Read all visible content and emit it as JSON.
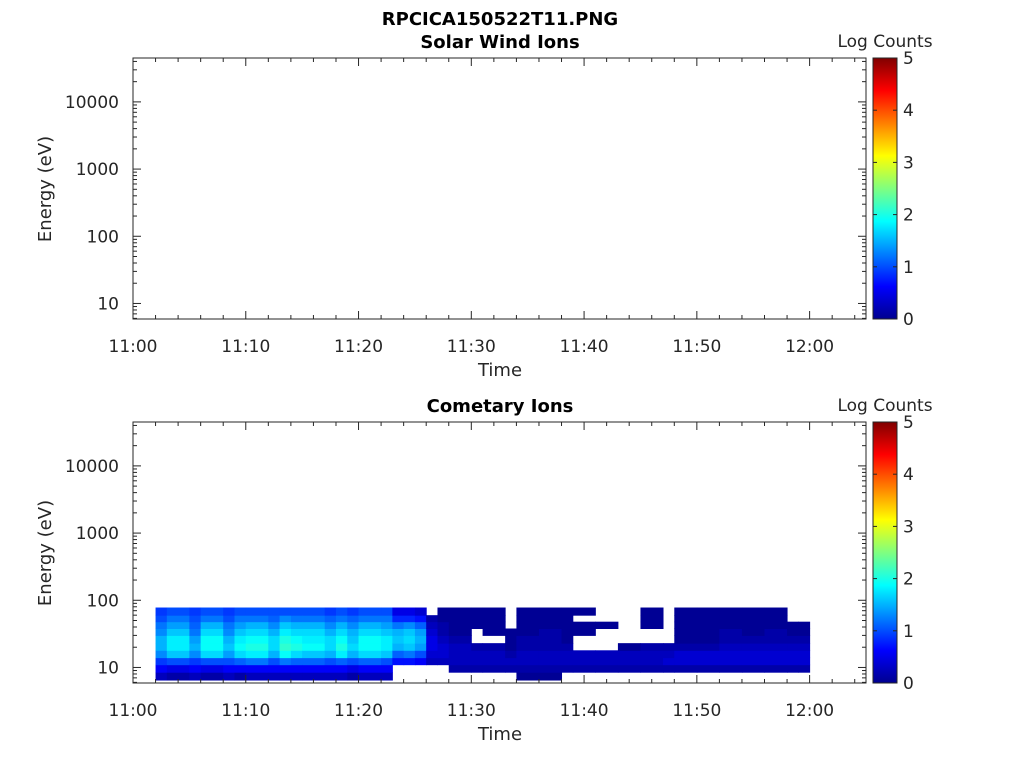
{
  "figure": {
    "title": "RPCICA150522T11.PNG"
  },
  "chart_data": [
    {
      "type": "heatmap",
      "title": "Solar Wind Ions",
      "xlabel": "Time",
      "ylabel": "Energy (eV)",
      "x_ticks": [
        "11:00",
        "11:10",
        "11:20",
        "11:30",
        "11:40",
        "11:50",
        "12:00"
      ],
      "y_ticks": [
        "10",
        "100",
        "1000",
        "10000"
      ],
      "y_scale": "log",
      "colorbar": {
        "label": "Log Counts",
        "ticks": [
          "0",
          "1",
          "2",
          "3",
          "4",
          "5"
        ],
        "range": [
          0,
          5
        ],
        "colormap": "jet"
      },
      "spectrogram": {
        "columns": []
      }
    },
    {
      "type": "heatmap",
      "title": "Cometary Ions",
      "xlabel": "Time",
      "ylabel": "Energy (eV)",
      "x_ticks": [
        "11:00",
        "11:10",
        "11:20",
        "11:30",
        "11:40",
        "11:50",
        "12:00"
      ],
      "y_ticks": [
        "10",
        "100",
        "1000",
        "10000"
      ],
      "y_scale": "log",
      "colorbar": {
        "label": "Log Counts",
        "ticks": [
          "0",
          "1",
          "2",
          "3",
          "4",
          "5"
        ],
        "range": [
          0,
          5
        ],
        "colormap": "jet"
      },
      "spectrogram": {
        "energy_bins": [
          6.5,
          8.5,
          11,
          14,
          18,
          23,
          30,
          38,
          48,
          60,
          78
        ],
        "columns": [
          {
            "t": [
              "11:02",
              "11:03"
            ],
            "levels": [
              0.3,
              0.6,
              0.9,
              1.3,
              1.5,
              1.5,
              1.3,
              1.2,
              1.0,
              0.9
            ]
          },
          {
            "t": [
              "11:03",
              "11:05"
            ],
            "levels": [
              0.2,
              0.5,
              1.0,
              1.6,
              1.8,
              1.8,
              1.6,
              1.4,
              1.2,
              1.0
            ]
          },
          {
            "t": [
              "11:05",
              "11:06"
            ],
            "levels": [
              0.3,
              0.6,
              0.9,
              1.3,
              1.5,
              1.4,
              1.2,
              1.1,
              1.0,
              0.9
            ]
          },
          {
            "t": [
              "11:06",
              "11:08"
            ],
            "levels": [
              0.2,
              0.5,
              1.0,
              1.7,
              1.9,
              1.9,
              1.7,
              1.5,
              1.2,
              1.0
            ]
          },
          {
            "t": [
              "11:08",
              "11:09"
            ],
            "levels": [
              0.3,
              0.6,
              1.0,
              1.4,
              1.6,
              1.5,
              1.3,
              1.2,
              1.0,
              0.9
            ]
          },
          {
            "t": [
              "11:09",
              "11:10"
            ],
            "levels": [
              0.2,
              0.6,
              1.1,
              1.7,
              1.9,
              1.8,
              1.6,
              1.4,
              1.2,
              1.0
            ]
          },
          {
            "t": [
              "11:10",
              "11:12"
            ],
            "levels": [
              0.3,
              0.6,
              1.2,
              1.8,
              2.0,
              1.9,
              1.7,
              1.5,
              1.2,
              1.0
            ]
          },
          {
            "t": [
              "11:12",
              "11:13"
            ],
            "levels": [
              0.3,
              0.6,
              1.0,
              1.5,
              1.7,
              1.7,
              1.5,
              1.3,
              1.1,
              1.0
            ]
          },
          {
            "t": [
              "11:13",
              "11:14"
            ],
            "levels": [
              0.3,
              0.6,
              1.2,
              1.9,
              2.1,
              2.0,
              1.8,
              1.6,
              1.3,
              1.0
            ]
          },
          {
            "t": [
              "11:14",
              "11:15"
            ],
            "levels": [
              0.3,
              0.6,
              1.1,
              1.7,
              2.0,
              1.9,
              1.7,
              1.5,
              1.2,
              1.0
            ]
          },
          {
            "t": [
              "11:15",
              "11:17"
            ],
            "levels": [
              0.3,
              0.6,
              1.1,
              1.6,
              1.9,
              1.8,
              1.7,
              1.5,
              1.2,
              1.0
            ]
          },
          {
            "t": [
              "11:17",
              "11:18"
            ],
            "levels": [
              0.3,
              0.6,
              1.0,
              1.5,
              1.7,
              1.7,
              1.5,
              1.3,
              1.1,
              0.9
            ]
          },
          {
            "t": [
              "11:18",
              "11:19"
            ],
            "levels": [
              0.3,
              0.6,
              1.1,
              1.8,
              2.0,
              1.9,
              1.7,
              1.5,
              1.2,
              1.0
            ]
          },
          {
            "t": [
              "11:19",
              "11:20"
            ],
            "levels": [
              0.2,
              0.5,
              1.0,
              1.5,
              1.7,
              1.6,
              1.5,
              1.3,
              1.1,
              0.9
            ]
          },
          {
            "t": [
              "11:20",
              "11:22"
            ],
            "levels": [
              0.3,
              0.6,
              1.1,
              1.7,
              1.9,
              1.9,
              1.7,
              1.5,
              1.2,
              1.0
            ]
          },
          {
            "t": [
              "11:22",
              "11:23"
            ],
            "levels": [
              0.3,
              0.6,
              1.0,
              1.6,
              1.8,
              1.8,
              1.6,
              1.4,
              1.2,
              1.0
            ]
          },
          {
            "t": [
              "11:23",
              "11:24"
            ],
            "levels": [
              null,
              null,
              0.7,
              1.1,
              1.5,
              1.6,
              1.5,
              1.2,
              0.8,
              0.5
            ]
          },
          {
            "t": [
              "11:24",
              "11:25"
            ],
            "levels": [
              null,
              null,
              0.7,
              1.2,
              1.6,
              1.7,
              1.6,
              1.3,
              0.8,
              0.5
            ]
          },
          {
            "t": [
              "11:25",
              "11:26"
            ],
            "levels": [
              null,
              null,
              0.6,
              1.0,
              1.4,
              1.5,
              1.4,
              1.1,
              0.7,
              0.4
            ]
          },
          {
            "t": [
              "11:26",
              "11:27"
            ],
            "levels": [
              null,
              null,
              0.3,
              0.4,
              0.5,
              0.5,
              0.4,
              0.3,
              0.2,
              null
            ]
          },
          {
            "t": [
              "11:27",
              "11:28"
            ],
            "levels": [
              null,
              null,
              0.3,
              0.4,
              0.4,
              0.3,
              0.2,
              0.2,
              0.1,
              0.1
            ]
          },
          {
            "t": [
              "11:28",
              "11:30"
            ],
            "levels": [
              null,
              0.2,
              0.3,
              0.3,
              0.3,
              0.2,
              0.1,
              0.1,
              0.1,
              0.1
            ]
          },
          {
            "t": [
              "11:30",
              "11:31"
            ],
            "levels": [
              null,
              0.2,
              0.3,
              0.3,
              0.2,
              null,
              null,
              0.1,
              0.1,
              0.1
            ]
          },
          {
            "t": [
              "11:31",
              "11:33"
            ],
            "levels": [
              null,
              0.2,
              0.3,
              0.3,
              0.2,
              null,
              0.1,
              0.1,
              0.1,
              0.1
            ]
          },
          {
            "t": [
              "11:33",
              "11:34"
            ],
            "levels": [
              null,
              0.2,
              0.3,
              0.2,
              0.1,
              0.1,
              0.1,
              null,
              null,
              null
            ]
          },
          {
            "t": [
              "11:34",
              "11:36"
            ],
            "levels": [
              0.1,
              0.2,
              0.3,
              0.3,
              0.2,
              0.2,
              0.1,
              0.1,
              0.1,
              0.1
            ]
          },
          {
            "t": [
              "11:36",
              "11:38"
            ],
            "levels": [
              0.1,
              0.2,
              0.3,
              0.3,
              0.2,
              0.2,
              0.2,
              0.1,
              0.1,
              0.1
            ]
          },
          {
            "t": [
              "11:38",
              "11:39"
            ],
            "levels": [
              null,
              0.2,
              0.3,
              0.3,
              0.2,
              0.1,
              0.1,
              0.1,
              0.1,
              0.1
            ]
          },
          {
            "t": [
              "11:39",
              "11:41"
            ],
            "levels": [
              null,
              0.2,
              0.3,
              0.3,
              null,
              null,
              0.1,
              0.1,
              null,
              0.1
            ]
          },
          {
            "t": [
              "11:41",
              "11:43"
            ],
            "levels": [
              null,
              0.2,
              0.3,
              0.3,
              null,
              null,
              null,
              0.1,
              null,
              null
            ]
          },
          {
            "t": [
              "11:43",
              "11:45"
            ],
            "levels": [
              null,
              0.2,
              0.3,
              0.3,
              0.1,
              null,
              null,
              null,
              null,
              null
            ]
          },
          {
            "t": [
              "11:45",
              "11:47"
            ],
            "levels": [
              null,
              0.2,
              0.3,
              0.3,
              0.2,
              null,
              null,
              0.1,
              0.1,
              0.1
            ]
          },
          {
            "t": [
              "11:47",
              "11:48"
            ],
            "levels": [
              null,
              0.2,
              0.4,
              0.3,
              0.2,
              null,
              null,
              null,
              null,
              null
            ]
          },
          {
            "t": [
              "11:48",
              "11:50"
            ],
            "levels": [
              null,
              0.2,
              0.4,
              0.4,
              0.2,
              0.1,
              0.1,
              0.1,
              0.1,
              0.1
            ]
          },
          {
            "t": [
              "11:50",
              "11:52"
            ],
            "levels": [
              null,
              0.2,
              0.4,
              0.4,
              0.2,
              0.1,
              0.1,
              0.1,
              0.1,
              0.1
            ]
          },
          {
            "t": [
              "11:52",
              "11:54"
            ],
            "levels": [
              null,
              0.2,
              0.4,
              0.4,
              0.3,
              0.2,
              0.2,
              0.1,
              0.1,
              0.1
            ]
          },
          {
            "t": [
              "11:54",
              "11:56"
            ],
            "levels": [
              null,
              0.2,
              0.4,
              0.4,
              0.3,
              0.2,
              0.1,
              0.1,
              0.1,
              0.1
            ]
          },
          {
            "t": [
              "11:56",
              "11:58"
            ],
            "levels": [
              null,
              0.2,
              0.4,
              0.4,
              0.3,
              0.2,
              0.2,
              0.1,
              0.1,
              0.1
            ]
          },
          {
            "t": [
              "11:58",
              "11:59"
            ],
            "levels": [
              null,
              0.2,
              0.4,
              0.4,
              0.3,
              0.2,
              0.1,
              0.1,
              null,
              null
            ]
          },
          {
            "t": [
              "11:59",
              "12:00"
            ],
            "levels": [
              null,
              0.2,
              0.4,
              0.4,
              0.3,
              0.2,
              0.1,
              0.1,
              null,
              null
            ]
          }
        ]
      }
    }
  ]
}
